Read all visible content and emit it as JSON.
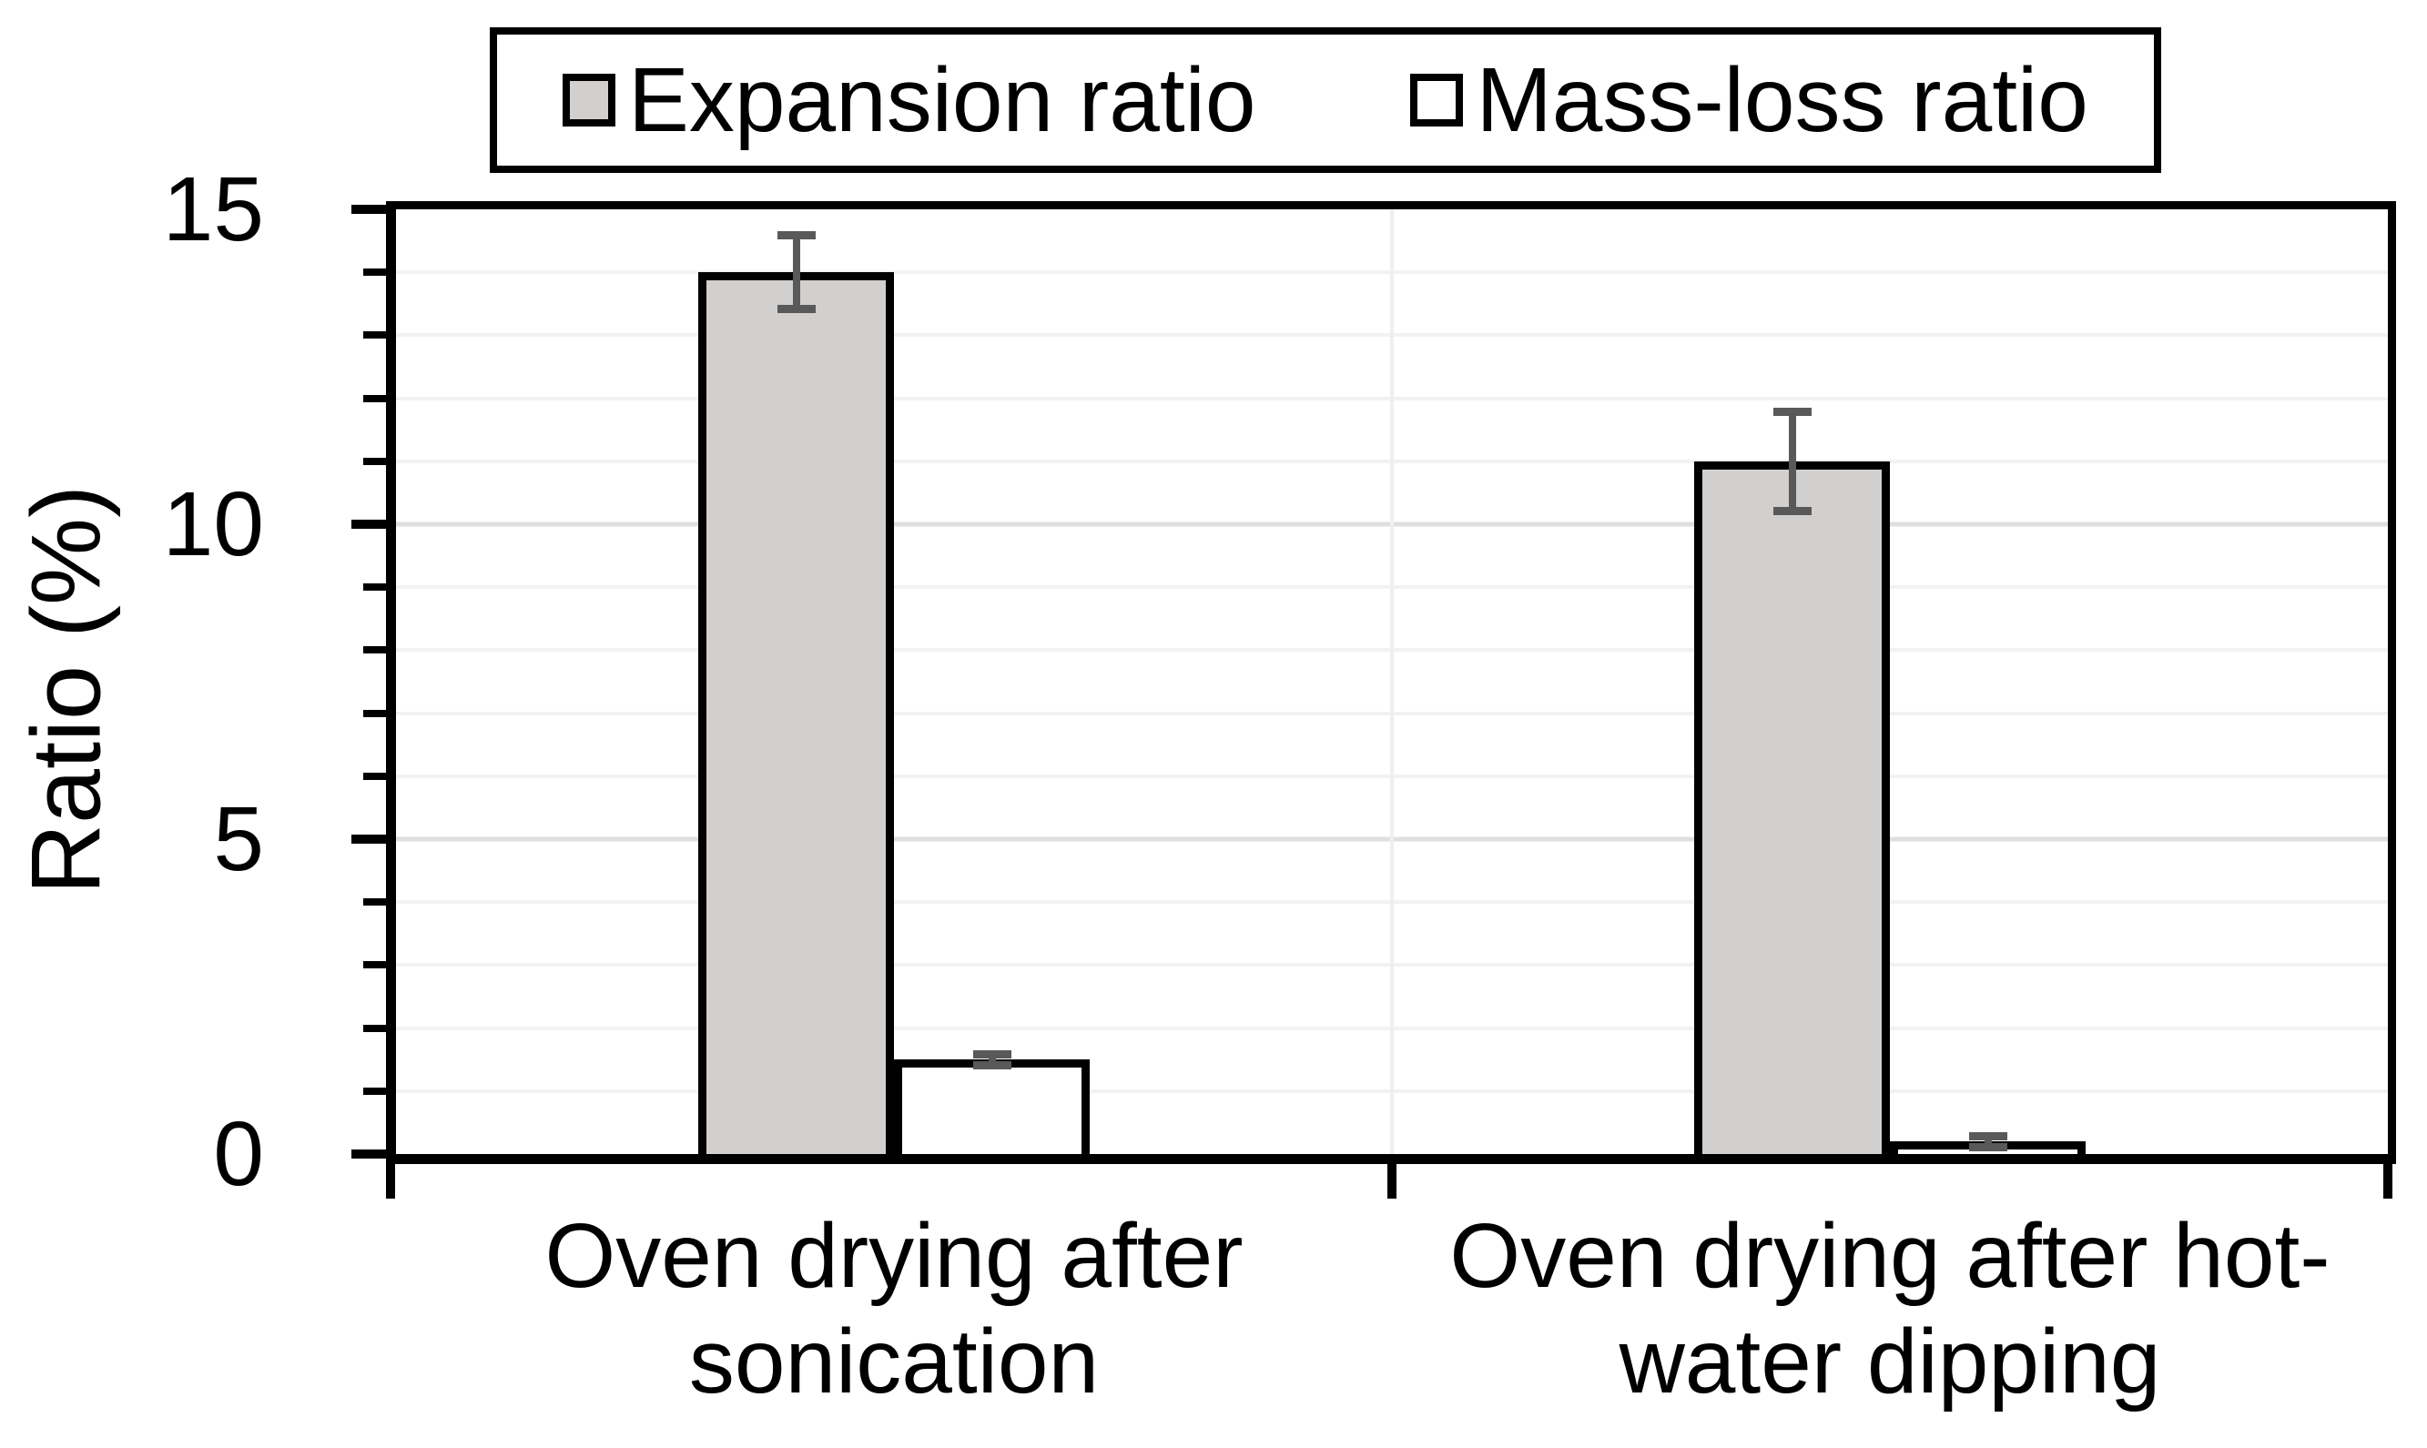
{
  "legend": {
    "items": [
      {
        "label": "Expansion ratio",
        "swatch_color": "#d1d0ce"
      },
      {
        "label": "Mass-loss ratio",
        "swatch_color": "#ffffff"
      }
    ]
  },
  "chart_data": {
    "type": "bar",
    "title": "",
    "xlabel": "",
    "ylabel": "Ratio (%)",
    "ylim": [
      0,
      15
    ],
    "yticks_major": [
      0,
      5,
      10,
      15
    ],
    "ytick_labels": [
      "0",
      "5",
      "10",
      "15"
    ],
    "minor_grid_step": 1,
    "grid": true,
    "legend_position": "top-center",
    "categories": [
      "Oven drying after sonication",
      "Oven drying after hot-water dipping"
    ],
    "category_label_lines": [
      [
        "Oven drying after",
        "sonication"
      ],
      [
        "Oven drying after hot-",
        "water dipping"
      ]
    ],
    "series": [
      {
        "name": "Expansion ratio",
        "fill": "#d1d0ce",
        "values": [
          14.0,
          11.0
        ],
        "errors": [
          0.65,
          0.85
        ]
      },
      {
        "name": "Mass-loss ratio",
        "fill": "#ffffff",
        "values": [
          1.5,
          0.2
        ],
        "errors": [
          0.15,
          0.15
        ]
      }
    ],
    "colors": {
      "axis": "#000000",
      "error_bar": "#595959",
      "grid_minor": "#f2f2f2",
      "grid_major": "#dfdfdf",
      "grid_vertical": "#efefef",
      "background": "#ffffff"
    }
  }
}
